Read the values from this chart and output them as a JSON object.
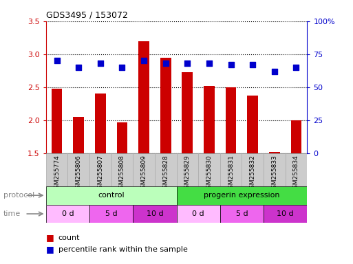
{
  "title": "GDS3495 / 153072",
  "samples": [
    "GSM255774",
    "GSM255806",
    "GSM255807",
    "GSM255808",
    "GSM255809",
    "GSM255828",
    "GSM255829",
    "GSM255830",
    "GSM255831",
    "GSM255832",
    "GSM255833",
    "GSM255834"
  ],
  "count_values": [
    2.48,
    2.05,
    2.4,
    1.97,
    3.2,
    2.95,
    2.73,
    2.52,
    2.5,
    2.37,
    1.52,
    2.0
  ],
  "percentile_values": [
    70,
    65,
    68,
    65,
    70,
    68,
    68,
    68,
    67,
    67,
    62,
    65
  ],
  "ylim_left": [
    1.5,
    3.5
  ],
  "ylim_right": [
    0,
    100
  ],
  "yticks_left": [
    1.5,
    2.0,
    2.5,
    3.0,
    3.5
  ],
  "yticks_right": [
    0,
    25,
    50,
    75,
    100
  ],
  "ytick_labels_right": [
    "0",
    "25",
    "50",
    "75",
    "100%"
  ],
  "grid_yticks": [
    2.0,
    2.5,
    3.0
  ],
  "bar_color": "#cc0000",
  "dot_color": "#0000cc",
  "bar_width": 0.5,
  "dot_size": 40,
  "left_tick_color": "#cc0000",
  "right_tick_color": "#0000cc",
  "background_color": "#ffffff",
  "ticklabel_bg": "#cccccc",
  "ticklabel_edge": "#aaaaaa",
  "proto_control_color": "#bbffbb",
  "proto_progerin_color": "#44dd44",
  "time_color_0d": "#ffbbff",
  "time_color_5d": "#ee66ee",
  "time_color_10d": "#cc33cc",
  "label_color": "#888888",
  "time_spans_per_sample": [
    0,
    1,
    2,
    0,
    1,
    2,
    0,
    1,
    2,
    0,
    1,
    2
  ],
  "protocol_boundary": 6
}
